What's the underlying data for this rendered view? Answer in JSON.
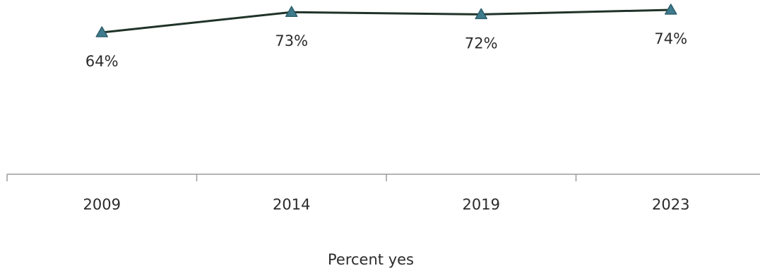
{
  "chart_data": {
    "type": "line",
    "categories": [
      "2009",
      "2014",
      "2019",
      "2023"
    ],
    "series": [
      {
        "values": [
          64,
          73,
          72,
          74
        ],
        "labels": [
          "64%",
          "73%",
          "72%",
          "74%"
        ]
      }
    ],
    "title": "",
    "xlabel": "Percent yes",
    "ylabel": "",
    "ylim": [
      0,
      80
    ],
    "grid": false,
    "legend": "none",
    "colors": {
      "line": "#1f3329",
      "marker_fill": "#3e7b8c",
      "marker_stroke": "#2f5f6d",
      "axis": "#9b9b9b",
      "text": "#2b2b2b"
    },
    "marker": "triangle"
  }
}
